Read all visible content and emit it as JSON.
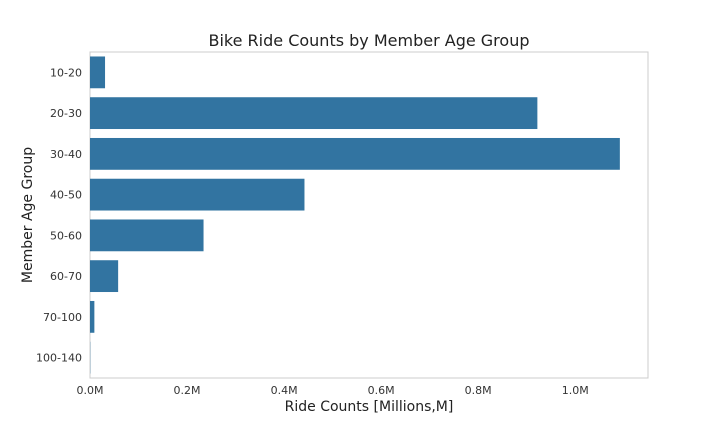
{
  "chart_data": {
    "type": "bar",
    "orientation": "horizontal",
    "title": "Bike Ride Counts by Member Age Group",
    "xlabel": "Ride Counts [Millions,M]",
    "ylabel": "Member Age Group",
    "categories": [
      "10-20",
      "20-30",
      "30-40",
      "40-50",
      "50-60",
      "60-70",
      "70-100",
      "100-140"
    ],
    "values": [
      0.031,
      0.922,
      1.092,
      0.442,
      0.234,
      0.058,
      0.009,
      0.0005
    ],
    "xlim": [
      0,
      1.15
    ],
    "xticks": [
      0,
      0.2,
      0.4,
      0.6,
      0.8,
      1.0
    ],
    "xtick_labels": [
      "0.0M",
      "0.2M",
      "0.4M",
      "0.6M",
      "0.8M",
      "1.0M"
    ],
    "grid": false,
    "color": "#3274a1"
  }
}
